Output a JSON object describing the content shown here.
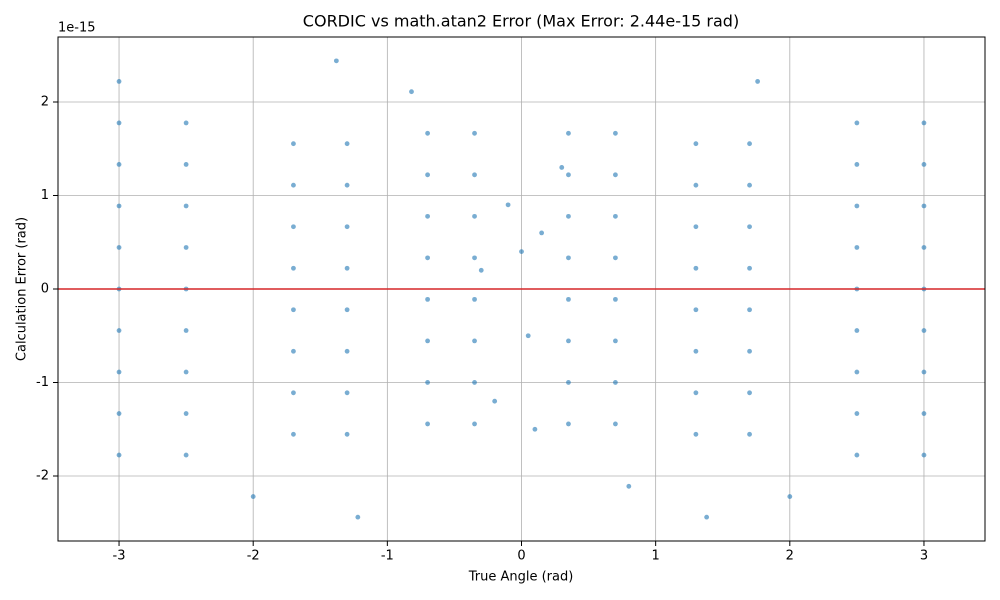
{
  "chart_data": {
    "type": "scatter",
    "title": "CORDIC vs math.atan2 Error (Max Error: 2.44e-15 rad)",
    "x_label": "True Angle (rad)",
    "y_label": "Calculation Error (rad)",
    "y_offset_label": "1e-15",
    "xlim": [
      -3.455,
      3.455
    ],
    "ylim": [
      -2.695,
      2.695
    ],
    "xticks": [
      -3,
      -2,
      -1,
      0,
      1,
      2,
      3
    ],
    "yticks": [
      -2,
      -1,
      0,
      1,
      2
    ],
    "grid": true,
    "reference_line": {
      "value": 0,
      "color": "#d62728"
    },
    "series": [
      {
        "color": "#1f77b4",
        "x": [
          -3.0,
          -3.0,
          -3.0,
          -3.0,
          -3.0,
          -3.0,
          -3.0,
          -3.0,
          -3.0,
          -2.5,
          -2.5,
          -2.5,
          -2.5,
          -2.5,
          -2.5,
          -2.5,
          -2.5,
          -2.5,
          2.5,
          2.5,
          2.5,
          2.5,
          2.5,
          2.5,
          2.5,
          2.5,
          2.5,
          3.0,
          3.0,
          3.0,
          3.0,
          3.0,
          3.0,
          3.0,
          3.0,
          3.0,
          -1.7,
          -1.7,
          -1.7,
          -1.7,
          -1.7,
          -1.7,
          -1.7,
          -1.7,
          -1.3,
          -1.3,
          -1.3,
          -1.3,
          -1.3,
          -1.3,
          -1.3,
          -1.3,
          1.3,
          1.3,
          1.3,
          1.3,
          1.3,
          1.3,
          1.3,
          1.3,
          1.7,
          1.7,
          1.7,
          1.7,
          1.7,
          1.7,
          1.7,
          1.7,
          -0.7,
          -0.7,
          -0.7,
          -0.7,
          -0.7,
          -0.7,
          -0.7,
          -0.7,
          -0.35,
          -0.35,
          -0.35,
          -0.35,
          -0.35,
          -0.35,
          -0.35,
          -0.35,
          0.35,
          0.35,
          0.35,
          0.35,
          0.35,
          0.35,
          0.35,
          0.35,
          0.7,
          0.7,
          0.7,
          0.7,
          0.7,
          0.7,
          0.7,
          0.7,
          -0.1,
          0.05,
          0.15,
          -0.2,
          0.3,
          -0.3,
          0.1,
          0,
          -1.38,
          -1.22,
          1.38,
          0.8,
          -0.82,
          -3.0,
          2.0,
          -2.0,
          1.76
        ],
        "values": [
          1.776,
          1.332,
          0.888,
          0.444,
          0,
          -0.444,
          -0.888,
          -1.332,
          -1.776,
          1.776,
          1.332,
          0.888,
          0.444,
          0,
          -0.444,
          -0.888,
          -1.332,
          -1.776,
          1.776,
          1.332,
          0.888,
          0.444,
          0,
          -0.444,
          -0.888,
          -1.332,
          -1.776,
          1.776,
          1.332,
          0.888,
          0.444,
          0,
          -0.444,
          -0.888,
          -1.332,
          -1.776,
          1.554,
          1.11,
          0.666,
          0.222,
          -0.222,
          -0.666,
          -1.11,
          -1.554,
          1.554,
          1.11,
          0.666,
          0.222,
          -0.222,
          -0.666,
          -1.11,
          -1.554,
          1.554,
          1.11,
          0.666,
          0.222,
          -0.222,
          -0.666,
          -1.11,
          -1.554,
          1.554,
          1.11,
          0.666,
          0.222,
          -0.222,
          -0.666,
          -1.11,
          -1.554,
          1.665,
          1.221,
          0.777,
          0.333,
          -0.111,
          -0.555,
          -0.999,
          -1.443,
          1.665,
          1.221,
          0.777,
          0.333,
          -0.111,
          -0.555,
          -0.999,
          -1.443,
          1.665,
          1.221,
          0.777,
          0.333,
          -0.111,
          -0.555,
          -0.999,
          -1.443,
          1.665,
          1.221,
          0.777,
          0.333,
          -0.111,
          -0.555,
          -0.999,
          -1.443,
          0.9,
          -0.5,
          0.6,
          -1.2,
          1.3,
          0.2,
          -1.5,
          0.4,
          2.44,
          -2.44,
          -2.44,
          -2.11,
          2.11,
          2.22,
          -2.22,
          -2.22,
          2.22
        ]
      }
    ]
  }
}
